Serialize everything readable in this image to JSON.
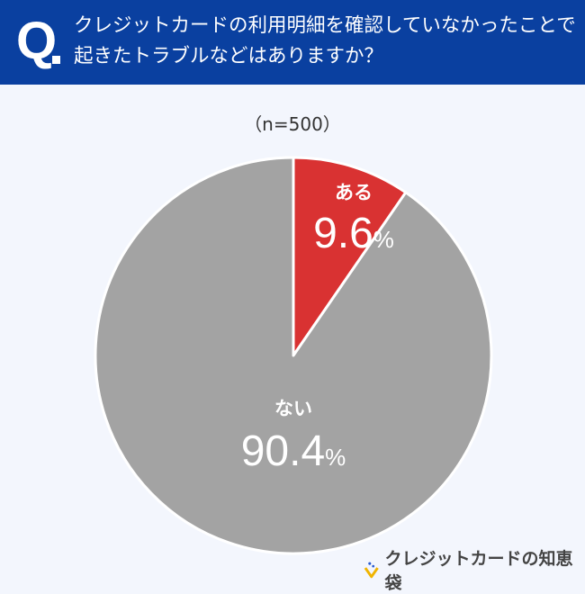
{
  "header": {
    "q_mark": "Q",
    "question": "クレジットカードの利用明細を確認していなかったことで起きたトラブルなどはありますか？"
  },
  "sample": "（n=500）",
  "chart_data": {
    "type": "pie",
    "slices": [
      {
        "label": "ある",
        "value": 9.6,
        "display": "9.6",
        "color": "#d93232"
      },
      {
        "label": "ない",
        "value": 90.4,
        "display": "90.4",
        "color": "#a3a3a3"
      }
    ],
    "unit": "%",
    "start": "top, clockwise"
  },
  "logo": {
    "text": "クレジットカードの知恵袋",
    "icon": "lightbulb-icon"
  }
}
